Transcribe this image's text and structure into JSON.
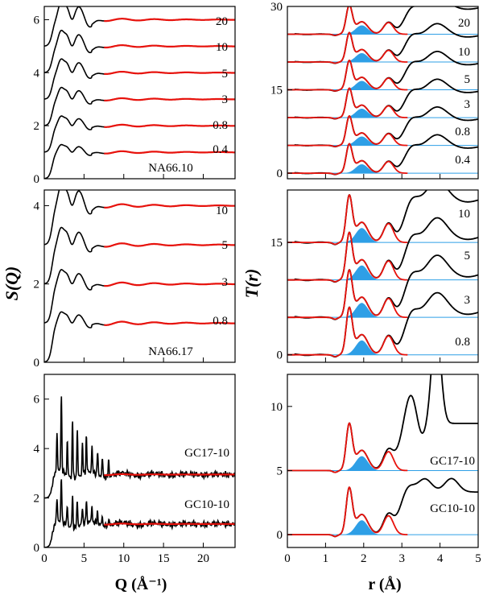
{
  "figure": {
    "left_axis_label": "S(Q)",
    "right_axis_label": "T(r)",
    "left_xlabel": "Q (Å⁻¹)",
    "right_xlabel": "r (Å)"
  },
  "chart_data": [
    {
      "id": "sq-na6610",
      "type": "line",
      "quantity": "S(Q)",
      "sample": "NA66.10",
      "xlim": [
        0,
        24
      ],
      "ylim": [
        0,
        6.5
      ],
      "xticks": [
        0,
        5,
        10,
        15,
        20
      ],
      "yticks": [
        0,
        2,
        4,
        6
      ],
      "show_xticklabels": false,
      "curve_labels": [
        "20",
        "10",
        "5",
        "3",
        "0.8",
        "0.4"
      ],
      "offsets": [
        5,
        4,
        3,
        2,
        1,
        0
      ],
      "series": [
        {
          "name": "measured",
          "color": "#000000"
        },
        {
          "name": "fit",
          "color": "#e8120c",
          "from_x": 7.5
        }
      ]
    },
    {
      "id": "sq-na6617",
      "type": "line",
      "quantity": "S(Q)",
      "sample": "NA66.17",
      "xlim": [
        0,
        24
      ],
      "ylim": [
        0,
        4.4
      ],
      "xticks": [
        0,
        5,
        10,
        15,
        20
      ],
      "yticks": [
        0,
        2,
        4
      ],
      "show_xticklabels": false,
      "curve_labels": [
        "10",
        "5",
        "3",
        "0.8"
      ],
      "offsets": [
        3,
        2,
        1,
        0
      ],
      "series": [
        {
          "name": "measured",
          "color": "#000000"
        },
        {
          "name": "fit",
          "color": "#e8120c",
          "from_x": 7.5
        }
      ]
    },
    {
      "id": "sq-gc",
      "type": "line",
      "quantity": "S(Q)",
      "xlim": [
        0,
        24
      ],
      "ylim": [
        0,
        7
      ],
      "xticks": [
        0,
        5,
        10,
        15,
        20
      ],
      "yticks": [
        0,
        2,
        4,
        6
      ],
      "show_xticklabels": true,
      "curve_labels": [
        "GC17-10",
        "GC10-10"
      ],
      "offsets": [
        2,
        0
      ],
      "series": [
        {
          "name": "measured",
          "color": "#000000"
        },
        {
          "name": "fit",
          "color": "#e8120c",
          "from_x": 7.5
        }
      ]
    },
    {
      "id": "tr-na6610",
      "type": "area",
      "quantity": "T(r)",
      "xlim": [
        0,
        5
      ],
      "ylim": [
        -1,
        30
      ],
      "xticks": [
        0,
        1,
        2,
        3,
        4,
        5
      ],
      "yticks": [
        0,
        15,
        30
      ],
      "show_xticklabels": false,
      "curve_labels": [
        "20",
        "10",
        "5",
        "3",
        "0.8",
        "0.4"
      ],
      "offsets": [
        25,
        20,
        15,
        10,
        5,
        0
      ],
      "peak_scale": 5,
      "series": [
        {
          "name": "measured",
          "color": "#000000"
        },
        {
          "name": "fit",
          "color": "#e8120c"
        },
        {
          "name": "component",
          "color": "#2e9fe6"
        }
      ]
    },
    {
      "id": "tr-na6617",
      "type": "area",
      "quantity": "T(r)",
      "xlim": [
        0,
        5
      ],
      "ylim": [
        -1,
        22
      ],
      "xticks": [
        0,
        1,
        2,
        3,
        4,
        5
      ],
      "yticks": [
        0,
        15
      ],
      "show_xticklabels": false,
      "curve_labels": [
        "10",
        "5",
        "3",
        "0.8"
      ],
      "offsets": [
        15,
        10,
        5,
        0
      ],
      "peak_scale": 6,
      "series": [
        {
          "name": "measured",
          "color": "#000000"
        },
        {
          "name": "fit",
          "color": "#e8120c"
        },
        {
          "name": "component",
          "color": "#2e9fe6"
        }
      ]
    },
    {
      "id": "tr-gc",
      "type": "area",
      "quantity": "T(r)",
      "xlim": [
        0,
        5
      ],
      "ylim": [
        -1,
        12.5
      ],
      "xticks": [
        0,
        1,
        2,
        3,
        4,
        5
      ],
      "yticks": [
        0,
        5,
        10
      ],
      "show_xticklabels": true,
      "curve_labels": [
        "GC17-10",
        "GC10-10"
      ],
      "offsets": [
        5,
        0
      ],
      "peak_scale": 3.5,
      "series": [
        {
          "name": "measured",
          "color": "#000000"
        },
        {
          "name": "fit",
          "color": "#e8120c"
        },
        {
          "name": "component",
          "color": "#2e9fe6"
        }
      ]
    }
  ]
}
